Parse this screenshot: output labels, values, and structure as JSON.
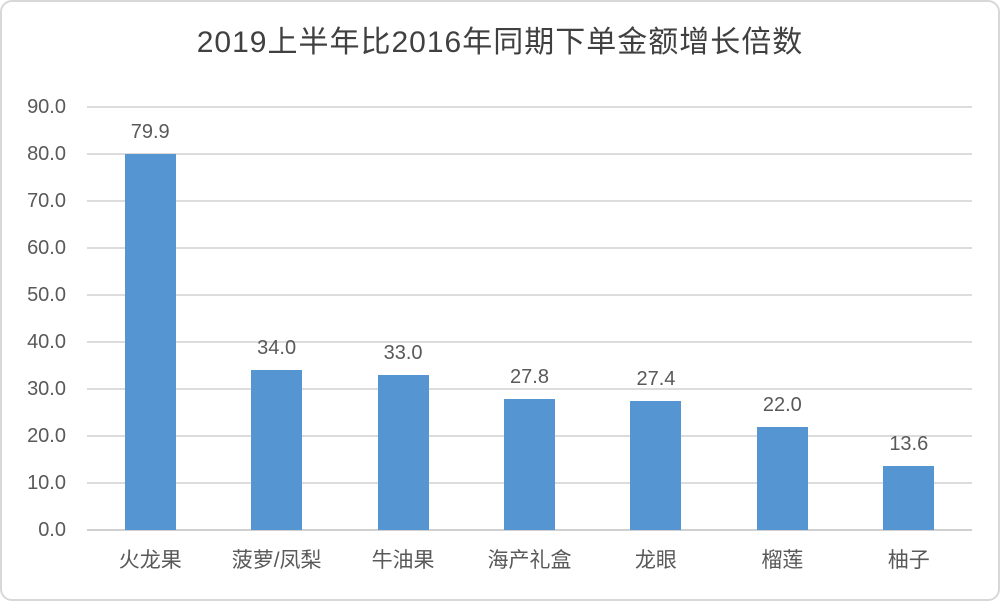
{
  "chart_data": {
    "type": "bar",
    "title": "2019上半年比2016年同期下单金额增长倍数",
    "categories": [
      "火龙果",
      "菠萝/凤梨",
      "牛油果",
      "海产礼盒",
      "龙眼",
      "榴莲",
      "柚子"
    ],
    "values": [
      79.9,
      34.0,
      33.0,
      27.8,
      27.4,
      22.0,
      13.6
    ],
    "value_labels": [
      "79.9",
      "34.0",
      "33.0",
      "27.8",
      "27.4",
      "22.0",
      "13.6"
    ],
    "y_tick_labels": [
      "0.0",
      "10.0",
      "20.0",
      "30.0",
      "40.0",
      "50.0",
      "60.0",
      "70.0",
      "80.0",
      "90.0"
    ],
    "ylim": [
      0,
      90
    ],
    "y_step": 10,
    "xlabel": "",
    "ylabel": "",
    "grid": true,
    "legend": "none",
    "colors": {
      "bar": "#5595d2",
      "gridline": "#dcdcdc",
      "baseline": "#d0d0d0",
      "axis_text": "#595959",
      "value_label_text": "#595959",
      "title_text": "#404040",
      "card_border": "#d8d8d8",
      "background": "#ffffff"
    }
  }
}
